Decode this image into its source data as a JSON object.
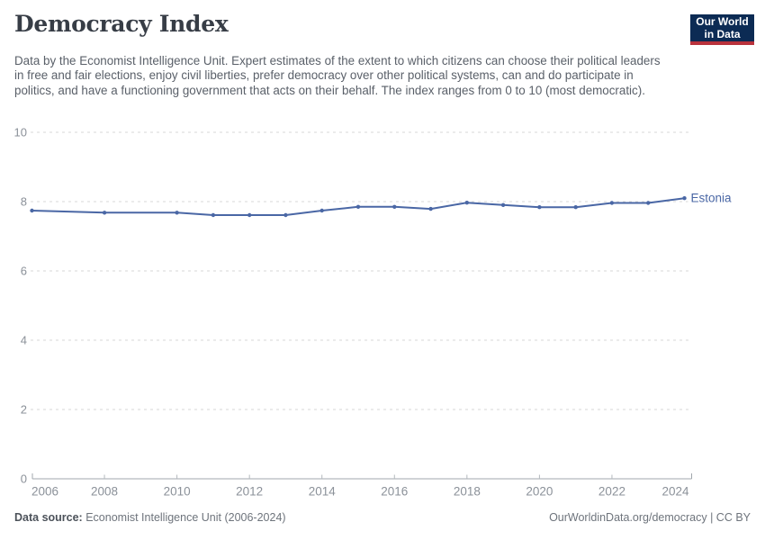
{
  "header": {
    "title": "Democracy Index",
    "subtitle": "Data by the Economist Intelligence Unit. Expert estimates of the extent to which citizens can choose their political leaders in free and fair elections, enjoy civil liberties, prefer democracy over other political systems, can and do participate in politics, and have a functioning government that acts on their behalf. The index ranges from 0 to 10 (most democratic)."
  },
  "logo": {
    "line1": "Our World",
    "line2": "in Data",
    "background": "#0c2b54",
    "accent": "#b9323c"
  },
  "chart_data": {
    "type": "line",
    "title": "Democracy Index",
    "xlabel": "",
    "ylabel": "",
    "ylim": [
      0,
      10
    ],
    "xlim": [
      2006,
      2024
    ],
    "y_ticks": [
      0,
      2,
      4,
      6,
      8,
      10
    ],
    "x_ticks": [
      2006,
      2008,
      2010,
      2012,
      2014,
      2016,
      2018,
      2020,
      2022,
      2024
    ],
    "grid": "horizontal-dashed",
    "legend_position": "end-of-line-label",
    "series": [
      {
        "name": "Estonia",
        "color": "#4a67a5",
        "x": [
          2006,
          2008,
          2010,
          2011,
          2012,
          2013,
          2014,
          2015,
          2016,
          2017,
          2018,
          2019,
          2020,
          2021,
          2022,
          2023,
          2024
        ],
        "values": [
          7.74,
          7.68,
          7.68,
          7.61,
          7.61,
          7.61,
          7.74,
          7.85,
          7.85,
          7.79,
          7.97,
          7.9,
          7.84,
          7.84,
          7.96,
          7.96,
          8.1
        ]
      }
    ]
  },
  "footer": {
    "source_label": "Data source:",
    "source_value": "Economist Intelligence Unit (2006-2024)",
    "credit": "OurWorldinData.org/democracy | CC BY"
  }
}
